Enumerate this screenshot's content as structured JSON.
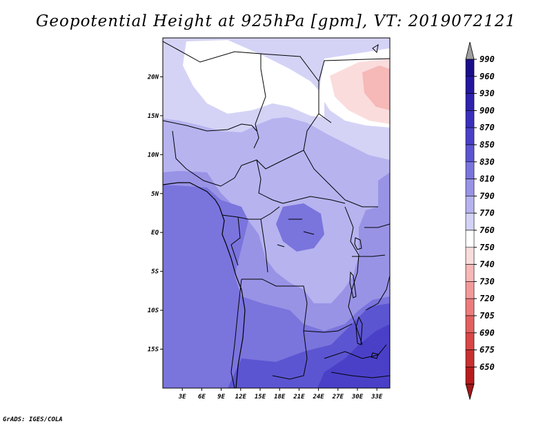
{
  "title": "Geopotential Height at 925hPa [gpm], VT: 2019072121",
  "credit": "GrADS: IGES/COLA",
  "lat_labels": [
    "20N",
    "15N",
    "10N",
    "5N",
    "EQ",
    "5S",
    "10S",
    "15S"
  ],
  "lat_values": [
    20,
    15,
    10,
    5,
    0,
    -5,
    -10,
    -15
  ],
  "lon_labels": [
    "3E",
    "6E",
    "9E",
    "12E",
    "15E",
    "18E",
    "21E",
    "24E",
    "27E",
    "30E",
    "33E"
  ],
  "lon_values": [
    3,
    6,
    9,
    12,
    15,
    18,
    21,
    24,
    27,
    30,
    33
  ],
  "legend": [
    {
      "label": "990",
      "color": "#1a0f8a"
    },
    {
      "label": "960",
      "color": "#24179e"
    },
    {
      "label": "930",
      "color": "#2f22ad"
    },
    {
      "label": "900",
      "color": "#3a2fbc"
    },
    {
      "label": "870",
      "color": "#4a40c8"
    },
    {
      "label": "850",
      "color": "#5c55d2"
    },
    {
      "label": "830",
      "color": "#7a74dd"
    },
    {
      "label": "810",
      "color": "#9993e6"
    },
    {
      "label": "790",
      "color": "#b6b3ef"
    },
    {
      "label": "770",
      "color": "#d4d3f6"
    },
    {
      "label": "760",
      "color": "#ffffff"
    },
    {
      "label": "750",
      "color": "#fbdcdc"
    },
    {
      "label": "740",
      "color": "#f7b8b8"
    },
    {
      "label": "730",
      "color": "#f29a9a"
    },
    {
      "label": "720",
      "color": "#ec7c7c"
    },
    {
      "label": "705",
      "color": "#e36060"
    },
    {
      "label": "690",
      "color": "#d94646"
    },
    {
      "label": "675",
      "color": "#c93030"
    },
    {
      "label": "650",
      "color": "#b81c1c"
    }
  ],
  "legend_top_arrow_color": "#a0a0a0",
  "legend_bottom_arrow_color": "#a31818",
  "map": {
    "lon_min": 0,
    "lon_max": 35,
    "lat_min": -20,
    "lat_max": 25,
    "shade_fields": [
      {
        "level": "810",
        "color": "#9993e6"
      },
      {
        "level": "830",
        "color": "#7a74dd"
      },
      {
        "level": "790",
        "color": "#b6b3ef"
      },
      {
        "level": "770",
        "color": "#d4d3f6"
      },
      {
        "level": "760",
        "color": "#ffffff"
      },
      {
        "level": "750",
        "color": "#fbdcdc"
      },
      {
        "level": "740",
        "color": "#f7b8b8"
      },
      {
        "level": "850",
        "color": "#5c55d2"
      },
      {
        "level": "870",
        "color": "#4a40c8"
      }
    ]
  }
}
